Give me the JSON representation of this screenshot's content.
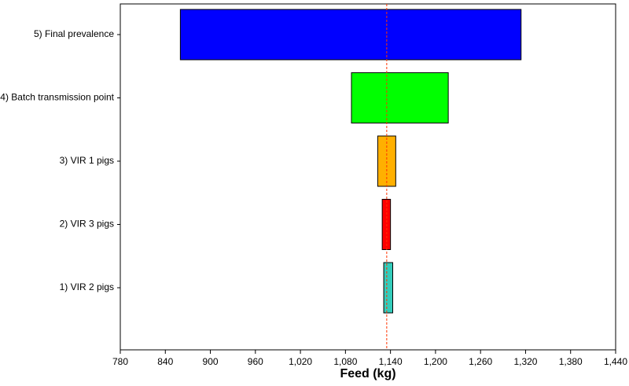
{
  "chart_data": {
    "type": "tornado",
    "categories": [
      "5) Final prevalence",
      "4) Batch transmission point",
      "3) VIR 1 pigs",
      "2) VIR 3 pigs",
      "1) VIR 2 pigs"
    ],
    "series": [
      {
        "name": "low",
        "values": [
          860,
          1088,
          1123,
          1129,
          1131
        ]
      },
      {
        "name": "high",
        "values": [
          1314,
          1217,
          1147,
          1140,
          1143
        ]
      }
    ],
    "colors": [
      "#0000ff",
      "#00ff00",
      "#ffb000",
      "#ff0000",
      "#33ccbb"
    ],
    "reference": 1135,
    "reference_color": "#ff3300",
    "xlabel": "Feed (kg)",
    "xlim": [
      780,
      1440
    ],
    "xticks": [
      780,
      840,
      900,
      960,
      {
        "value": 1020,
        "label": "1,020"
      },
      {
        "value": 1080,
        "label": "1,080"
      },
      {
        "value": 1140,
        "label": "1,140"
      },
      {
        "value": 1200,
        "label": "1,200"
      },
      {
        "value": 1260,
        "label": "1,260"
      },
      {
        "value": 1320,
        "label": "1,320"
      },
      {
        "value": 1380,
        "label": "1,380"
      },
      {
        "value": 1440,
        "label": "1,440"
      }
    ]
  }
}
